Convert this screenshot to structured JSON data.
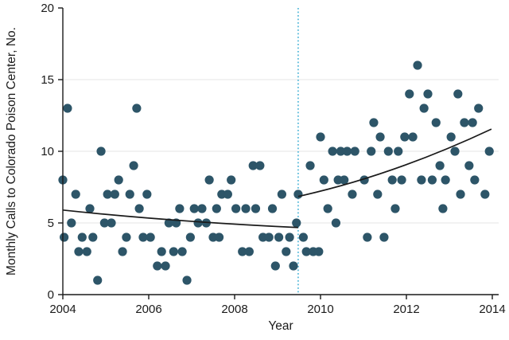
{
  "chart_data": {
    "type": "scatter",
    "title": "",
    "xlabel": "Year",
    "ylabel": "Monthly Calls to Colorado Poison Center, No.",
    "xlim": [
      2004,
      2014
    ],
    "ylim": [
      0,
      20
    ],
    "x_ticks": [
      "2004",
      "2006",
      "2008",
      "2010",
      "2012",
      "2014"
    ],
    "x_tick_values": [
      2004,
      2006,
      2008,
      2010,
      2012,
      2014
    ],
    "y_ticks": [
      "0",
      "5",
      "10",
      "15",
      "20"
    ],
    "y_tick_values": [
      0,
      5,
      10,
      15,
      20
    ],
    "gridlines_y": [
      5,
      10,
      15
    ],
    "grid_on": true,
    "legend": "none",
    "point_color": "#2d5568",
    "point_radius": 5.6,
    "trend_color": "#1a1a1a",
    "grid_color": "#e5e5e5",
    "axis_color": "#1a1a1a",
    "reference_line": {
      "x": 2009.48,
      "style": "dotted",
      "color": "#45b2d6",
      "meaning": "vertical dotted divider between trend segments"
    },
    "points": [
      [
        2004.0,
        8
      ],
      [
        2004.03,
        4
      ],
      [
        2004.11,
        13
      ],
      [
        2004.2,
        5
      ],
      [
        2004.3,
        7
      ],
      [
        2004.37,
        3
      ],
      [
        2004.45,
        4
      ],
      [
        2004.56,
        3
      ],
      [
        2004.63,
        6
      ],
      [
        2004.7,
        4
      ],
      [
        2004.81,
        1
      ],
      [
        2004.89,
        10
      ],
      [
        2004.97,
        5
      ],
      [
        2005.04,
        7
      ],
      [
        2005.13,
        5
      ],
      [
        2005.21,
        7
      ],
      [
        2005.3,
        8
      ],
      [
        2005.39,
        3
      ],
      [
        2005.48,
        4
      ],
      [
        2005.56,
        7
      ],
      [
        2005.65,
        9
      ],
      [
        2005.72,
        13
      ],
      [
        2005.78,
        6
      ],
      [
        2005.87,
        4
      ],
      [
        2005.96,
        7
      ],
      [
        2006.04,
        4
      ],
      [
        2006.2,
        2
      ],
      [
        2006.3,
        3
      ],
      [
        2006.39,
        2
      ],
      [
        2006.47,
        5
      ],
      [
        2006.58,
        3
      ],
      [
        2006.64,
        5
      ],
      [
        2006.72,
        6
      ],
      [
        2006.78,
        3
      ],
      [
        2006.89,
        1
      ],
      [
        2006.97,
        4
      ],
      [
        2007.06,
        6
      ],
      [
        2007.15,
        5
      ],
      [
        2007.24,
        6
      ],
      [
        2007.34,
        5
      ],
      [
        2007.41,
        8
      ],
      [
        2007.5,
        4
      ],
      [
        2007.58,
        6
      ],
      [
        2007.64,
        4
      ],
      [
        2007.7,
        7
      ],
      [
        2007.84,
        7
      ],
      [
        2007.92,
        8
      ],
      [
        2008.03,
        6
      ],
      [
        2008.18,
        3
      ],
      [
        2008.26,
        6
      ],
      [
        2008.34,
        3
      ],
      [
        2008.43,
        9
      ],
      [
        2008.49,
        6
      ],
      [
        2008.59,
        9
      ],
      [
        2008.66,
        4
      ],
      [
        2008.8,
        4
      ],
      [
        2008.88,
        6
      ],
      [
        2008.95,
        2
      ],
      [
        2009.03,
        4
      ],
      [
        2009.1,
        7
      ],
      [
        2009.2,
        3
      ],
      [
        2009.28,
        4
      ],
      [
        2009.37,
        2
      ],
      [
        2009.44,
        5
      ],
      [
        2009.48,
        7
      ],
      [
        2009.6,
        4
      ],
      [
        2009.67,
        3
      ],
      [
        2009.76,
        9
      ],
      [
        2009.83,
        3
      ],
      [
        2009.96,
        3
      ],
      [
        2010.0,
        11
      ],
      [
        2010.08,
        8
      ],
      [
        2010.17,
        6
      ],
      [
        2010.28,
        10
      ],
      [
        2010.36,
        5
      ],
      [
        2010.41,
        8
      ],
      [
        2010.47,
        10
      ],
      [
        2010.55,
        8
      ],
      [
        2010.62,
        10
      ],
      [
        2010.74,
        7
      ],
      [
        2010.8,
        10
      ],
      [
        2011.02,
        8
      ],
      [
        2011.09,
        4
      ],
      [
        2011.18,
        10
      ],
      [
        2011.24,
        12
      ],
      [
        2011.33,
        7
      ],
      [
        2011.39,
        11
      ],
      [
        2011.48,
        4
      ],
      [
        2011.58,
        10
      ],
      [
        2011.67,
        8
      ],
      [
        2011.74,
        6
      ],
      [
        2011.81,
        10
      ],
      [
        2011.89,
        8
      ],
      [
        2011.96,
        11
      ],
      [
        2012.07,
        14
      ],
      [
        2012.15,
        11
      ],
      [
        2012.26,
        16
      ],
      [
        2012.35,
        8
      ],
      [
        2012.41,
        13
      ],
      [
        2012.5,
        14
      ],
      [
        2012.6,
        8
      ],
      [
        2012.69,
        12
      ],
      [
        2012.78,
        9
      ],
      [
        2012.85,
        6
      ],
      [
        2012.91,
        8
      ],
      [
        2013.04,
        11
      ],
      [
        2013.13,
        10
      ],
      [
        2013.2,
        14
      ],
      [
        2013.26,
        7
      ],
      [
        2013.35,
        12
      ],
      [
        2013.46,
        9
      ],
      [
        2013.54,
        12
      ],
      [
        2013.59,
        8
      ],
      [
        2013.68,
        13
      ],
      [
        2013.83,
        7
      ],
      [
        2013.93,
        10
      ]
    ],
    "trend_segments": [
      {
        "name": "pre-2009.5 fitted trend",
        "points": [
          [
            2004.0,
            5.9
          ],
          [
            2006.6,
            5.2
          ],
          [
            2009.48,
            4.68
          ]
        ]
      },
      {
        "name": "post-2009.5 fitted trend",
        "points": [
          [
            2009.48,
            6.85
          ],
          [
            2011.7,
            8.75
          ],
          [
            2013.98,
            11.55
          ]
        ]
      }
    ]
  }
}
